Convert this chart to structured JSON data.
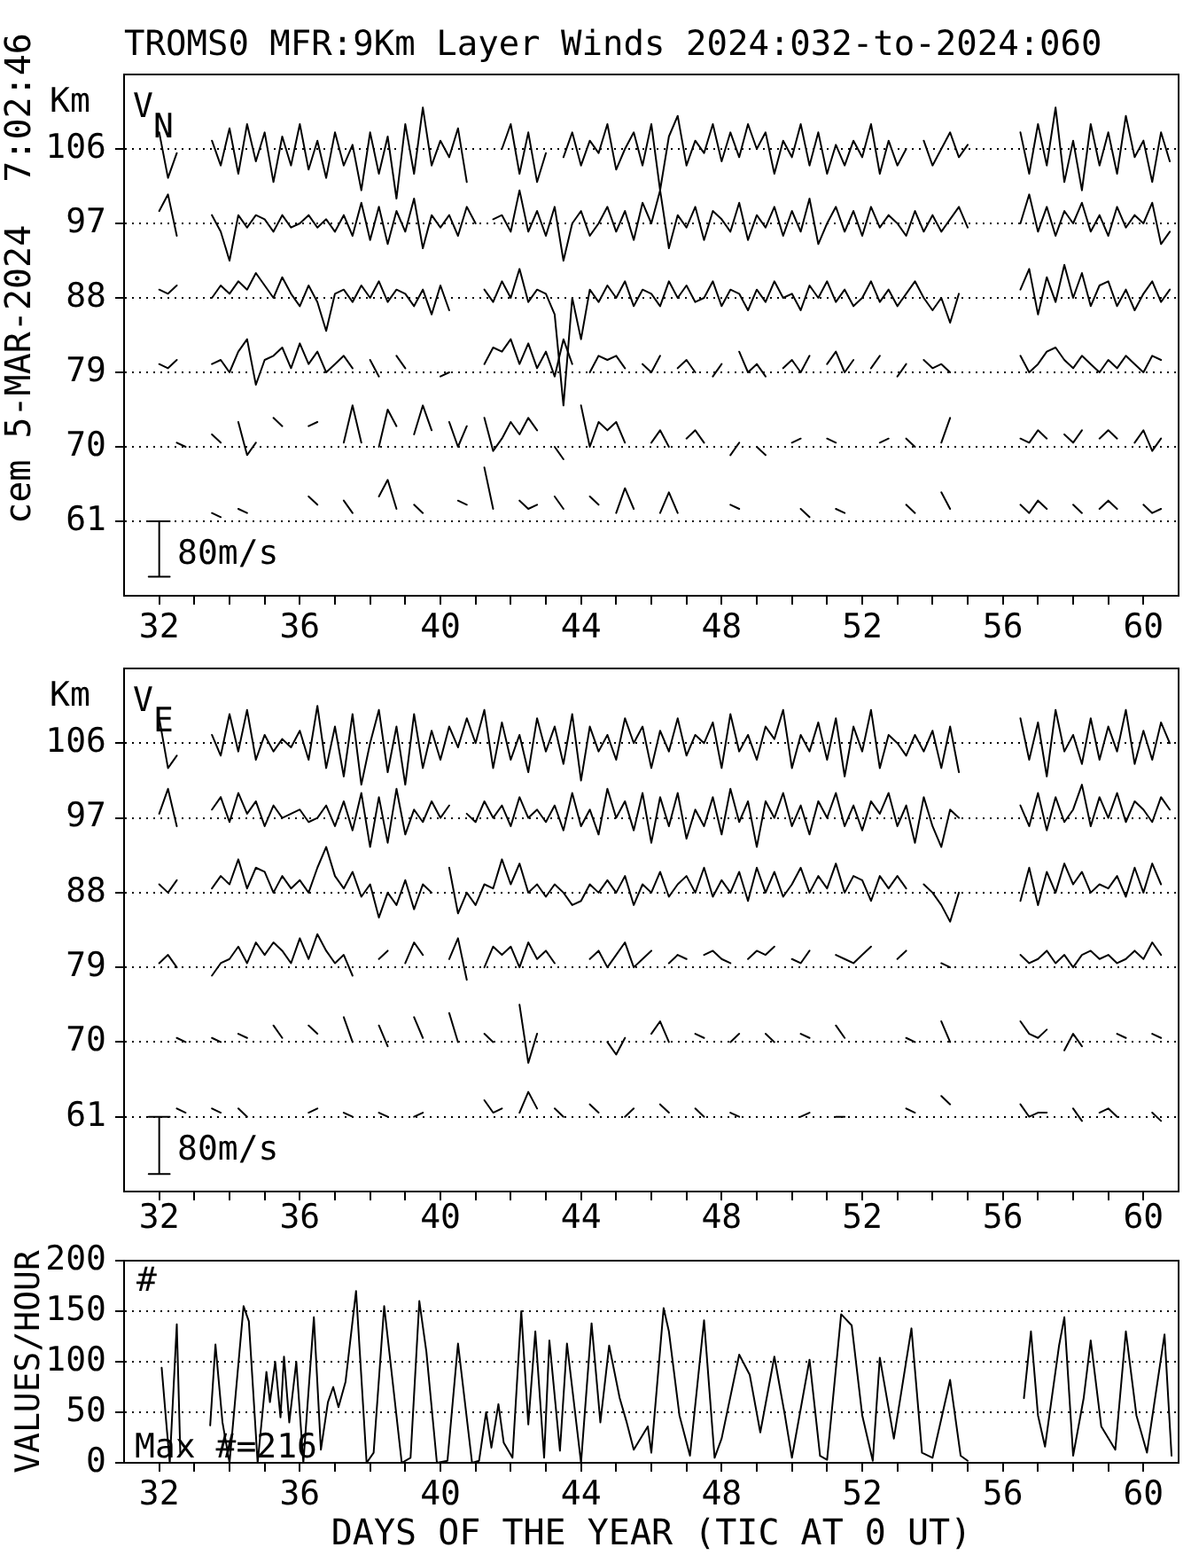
{
  "chart_data": [
    {
      "type": "line",
      "title": "TROMS0 MFR:9Km Layer Winds 2024:032-to-2024:060",
      "ylabel": "Km",
      "annotations": [
        "cem 5-MAR-2024  7:02:46",
        "V$_{N}$",
        "80m/s"
      ],
      "x": [
        32,
        32.25,
        32.5,
        32.75,
        33,
        33.25,
        33.5,
        33.75,
        34,
        34.25,
        34.5,
        34.75,
        35,
        35.25,
        35.5,
        35.75,
        36,
        36.25,
        36.5,
        36.75,
        37,
        37.25,
        37.5,
        37.75,
        38,
        38.25,
        38.5,
        38.75,
        39,
        39.25,
        39.5,
        39.75,
        40,
        40.25,
        40.5,
        40.75,
        41,
        41.25,
        41.5,
        41.75,
        42,
        42.25,
        42.5,
        42.75,
        43,
        43.25,
        43.5,
        43.75,
        44,
        44.25,
        44.5,
        44.75,
        45,
        45.25,
        45.5,
        45.75,
        46,
        46.25,
        46.5,
        46.75,
        47,
        47.25,
        47.5,
        47.75,
        48,
        48.25,
        48.5,
        48.75,
        49,
        49.25,
        49.5,
        49.75,
        50,
        50.25,
        50.5,
        50.75,
        51,
        51.25,
        51.5,
        51.75,
        52,
        52.25,
        52.5,
        52.75,
        53,
        53.25,
        53.5,
        53.75,
        54,
        54.25,
        54.5,
        54.75,
        55,
        55.25,
        55.5,
        55.75,
        56,
        56.25,
        56.5,
        56.75,
        57,
        57.25,
        57.5,
        57.75,
        58,
        58.25,
        58.5,
        58.75,
        59,
        59.25,
        59.5,
        59.75,
        60,
        60.25,
        60.5,
        60.75
      ],
      "series": [
        {
          "color": "#000000",
          "values": [
            108,
            102.5,
            105.5,
            null,
            null,
            null,
            107,
            104,
            108.5,
            103,
            109,
            104.5,
            108,
            102,
            107.5,
            104,
            109,
            103.5,
            107,
            102.5,
            108,
            104,
            106.5,
            101,
            108,
            103,
            107.5,
            100,
            109,
            103,
            111,
            104,
            107,
            105,
            108.5,
            102,
            null,
            null,
            null,
            106,
            109,
            103,
            108,
            102,
            105.5,
            null,
            105,
            108,
            104,
            107,
            105.5,
            109,
            103.5,
            106,
            108,
            104,
            109,
            101,
            107.5,
            110,
            104,
            107,
            105.5,
            109,
            104.5,
            108,
            105,
            109,
            106,
            108,
            103,
            107,
            105,
            109,
            104,
            108,
            103,
            106.5,
            104,
            107,
            105,
            109,
            103,
            107,
            104,
            106,
            null,
            107,
            104,
            106,
            108,
            105,
            106.5,
            null,
            null,
            null,
            null,
            null,
            108,
            103,
            109,
            104,
            111,
            102,
            107,
            101,
            109,
            104,
            108,
            103,
            110,
            105,
            107,
            102,
            108,
            104.5
          ]
        },
        {
          "color": "#000000",
          "values": [
            98.5,
            100.5,
            95.5,
            null,
            null,
            null,
            98,
            96,
            92.5,
            98,
            96.5,
            98,
            97.5,
            96,
            98,
            96.5,
            97,
            98,
            96.5,
            97.5,
            96,
            98,
            95.5,
            99.5,
            95,
            99,
            94.5,
            98.5,
            96,
            100,
            94,
            98,
            96.5,
            98,
            95.5,
            99,
            97,
            null,
            97.5,
            98,
            96,
            101,
            96,
            98.5,
            95.5,
            99,
            92.5,
            97,
            98.5,
            95.5,
            97,
            99,
            96,
            98.5,
            95,
            99.5,
            97,
            101,
            94,
            98,
            96.5,
            99,
            95,
            98.5,
            97.5,
            96,
            99.5,
            95,
            98,
            96.5,
            99,
            95.5,
            98.5,
            96,
            100,
            94.5,
            97,
            99,
            96,
            98.5,
            95.5,
            99,
            96.5,
            98,
            97,
            95.5,
            98.5,
            96,
            98,
            96,
            97.5,
            99,
            96.5,
            null,
            null,
            null,
            null,
            null,
            97,
            100.5,
            96,
            99,
            95.5,
            98.5,
            97,
            99.5,
            96,
            98,
            95.5,
            99,
            96.5,
            98,
            97,
            99.5,
            94.5,
            96
          ]
        },
        {
          "color": "#000000",
          "values": [
            89,
            88.5,
            89.5,
            null,
            null,
            null,
            88,
            89.5,
            88.5,
            90,
            89,
            91,
            89.5,
            88,
            90.5,
            88.5,
            87,
            89.5,
            87.5,
            84,
            88.5,
            89,
            87.5,
            89.5,
            88,
            90,
            87.5,
            89,
            88.5,
            87,
            89,
            86,
            89.5,
            86.5,
            null,
            null,
            null,
            89,
            87.5,
            90,
            88,
            91.5,
            87.5,
            89,
            88.5,
            86,
            75,
            88,
            83,
            89,
            87.5,
            89.5,
            88,
            90,
            87,
            89,
            88.5,
            87,
            90,
            88,
            89.5,
            87.5,
            88,
            90,
            87,
            89,
            88.5,
            86.5,
            89,
            87.5,
            90,
            88,
            88.5,
            86.5,
            89.5,
            88,
            90,
            87.5,
            89,
            87,
            88,
            90,
            87.5,
            89,
            87,
            88.5,
            90,
            88,
            86.5,
            88,
            85,
            88.5,
            null,
            null,
            null,
            null,
            null,
            null,
            89,
            91.5,
            86,
            90.5,
            87.5,
            92,
            88,
            91,
            87,
            89.5,
            90,
            87,
            89,
            86.5,
            88.5,
            90,
            87.5,
            89
          ]
        },
        {
          "color": "#000000",
          "values": [
            80,
            79.5,
            80.5,
            null,
            null,
            null,
            80,
            80.5,
            79,
            81.5,
            83,
            77.5,
            80.5,
            81,
            82,
            79.5,
            82.5,
            80,
            81.5,
            79,
            80,
            81,
            79.5,
            null,
            80.5,
            78.5,
            null,
            81,
            79.5,
            null,
            null,
            null,
            78.5,
            79,
            null,
            null,
            null,
            80,
            82,
            81.5,
            83,
            80,
            82.5,
            79.5,
            81.5,
            78.5,
            83,
            80,
            null,
            79,
            81,
            80.5,
            81,
            79.5,
            null,
            80,
            79,
            81,
            null,
            79.5,
            80.5,
            79,
            null,
            78.5,
            80,
            null,
            81.5,
            79,
            80,
            78.5,
            null,
            79.5,
            80.5,
            79,
            81,
            null,
            80,
            81.5,
            79,
            80.5,
            null,
            79.5,
            81,
            null,
            78.5,
            80,
            null,
            80.5,
            79.5,
            80,
            79,
            null,
            null,
            null,
            null,
            null,
            null,
            null,
            81,
            79,
            80,
            81.5,
            82,
            80.5,
            79.5,
            81,
            80,
            79,
            80.5,
            79.5,
            81,
            80,
            79,
            81,
            80.5,
            null
          ]
        },
        {
          "color": "#000000",
          "values": [
            null,
            null,
            70.5,
            70,
            null,
            null,
            71.5,
            70.5,
            null,
            73,
            69,
            70.5,
            null,
            73.5,
            72.5,
            null,
            null,
            72.5,
            73,
            null,
            null,
            70.5,
            75,
            70.5,
            null,
            70,
            74.5,
            72.5,
            null,
            71.5,
            75,
            72,
            null,
            73,
            70,
            72.5,
            null,
            73.5,
            69.5,
            71,
            73,
            71.5,
            73.5,
            72,
            null,
            70,
            68.5,
            null,
            75,
            70,
            73,
            72,
            73,
            70.5,
            null,
            null,
            70.5,
            72,
            70,
            null,
            71,
            72,
            70.5,
            null,
            null,
            69,
            70.5,
            null,
            70,
            69,
            null,
            null,
            70.5,
            71,
            null,
            null,
            71,
            70.5,
            null,
            null,
            null,
            null,
            70.5,
            71,
            null,
            71,
            70,
            null,
            null,
            70.5,
            73.5,
            null,
            null,
            null,
            null,
            null,
            null,
            null,
            71,
            70.5,
            72,
            71,
            null,
            71.5,
            70.5,
            72,
            null,
            71,
            72,
            71,
            null,
            70.5,
            72,
            69.5,
            71,
            null
          ]
        },
        {
          "color": "#000000",
          "values": [
            null,
            null,
            null,
            null,
            null,
            null,
            62,
            61.5,
            null,
            62.5,
            62,
            null,
            null,
            null,
            null,
            null,
            null,
            64,
            63,
            null,
            null,
            63.5,
            62,
            null,
            null,
            64,
            66,
            62.5,
            null,
            63,
            62,
            null,
            null,
            null,
            63.5,
            63,
            null,
            67.5,
            62.5,
            null,
            null,
            63.5,
            62.5,
            63,
            null,
            64,
            62.5,
            null,
            null,
            64,
            63,
            null,
            62,
            65,
            62.5,
            null,
            null,
            62,
            64.5,
            62,
            null,
            null,
            null,
            null,
            null,
            63,
            62.5,
            null,
            null,
            null,
            null,
            null,
            null,
            62.5,
            61.5,
            null,
            null,
            62.5,
            62,
            null,
            null,
            null,
            null,
            null,
            null,
            63,
            62,
            null,
            null,
            64.5,
            62.5,
            null,
            null,
            null,
            null,
            null,
            null,
            null,
            63,
            62,
            63.5,
            62.5,
            null,
            null,
            63,
            62,
            null,
            62.5,
            63.5,
            62.5,
            null,
            null,
            63,
            62,
            62.5,
            null
          ]
        },
        {
          "color": "#000000",
          "x": [
            31.7,
            32.3,
            32,
            32,
            31.7,
            32.3
          ],
          "values": [
            61,
            61,
            61,
            54.3,
            54.3,
            54.3
          ]
        }
      ],
      "xlim": [
        31,
        61
      ],
      "xticks": [
        32,
        {
          "value": 33,
          "label": null
        },
        {
          "value": 34,
          "label": null
        },
        {
          "value": 35,
          "label": null
        },
        36,
        {
          "value": 37,
          "label": null
        },
        {
          "value": 38,
          "label": null
        },
        {
          "value": 39,
          "label": null
        },
        40,
        {
          "value": 41,
          "label": null
        },
        {
          "value": 42,
          "label": null
        },
        {
          "value": 43,
          "label": null
        },
        44,
        {
          "value": 45,
          "label": null
        },
        {
          "value": 46,
          "label": null
        },
        {
          "value": 47,
          "label": null
        },
        48,
        {
          "value": 49,
          "label": null
        },
        {
          "value": 50,
          "label": null
        },
        {
          "value": 51,
          "label": null
        },
        52,
        {
          "value": 53,
          "label": null
        },
        {
          "value": 54,
          "label": null
        },
        {
          "value": 55,
          "label": null
        },
        56,
        {
          "value": 57,
          "label": null
        },
        {
          "value": 58,
          "label": null
        },
        {
          "value": 59,
          "label": null
        },
        60
      ],
      "ylim": [
        52,
        115
      ],
      "yticks": [
        61,
        70,
        79,
        88,
        97,
        106
      ],
      "grid": "y"
    },
    {
      "type": "line",
      "ylabel": "Km",
      "annotations": [
        "V$_{E}$",
        "80m/s"
      ],
      "x": [
        32,
        32.25,
        32.5,
        32.75,
        33,
        33.25,
        33.5,
        33.75,
        34,
        34.25,
        34.5,
        34.75,
        35,
        35.25,
        35.5,
        35.75,
        36,
        36.25,
        36.5,
        36.75,
        37,
        37.25,
        37.5,
        37.75,
        38,
        38.25,
        38.5,
        38.75,
        39,
        39.25,
        39.5,
        39.75,
        40,
        40.25,
        40.5,
        40.75,
        41,
        41.25,
        41.5,
        41.75,
        42,
        42.25,
        42.5,
        42.75,
        43,
        43.25,
        43.5,
        43.75,
        44,
        44.25,
        44.5,
        44.75,
        45,
        45.25,
        45.5,
        45.75,
        46,
        46.25,
        46.5,
        46.75,
        47,
        47.25,
        47.5,
        47.75,
        48,
        48.25,
        48.5,
        48.75,
        49,
        49.25,
        49.5,
        49.75,
        50,
        50.25,
        50.5,
        50.75,
        51,
        51.25,
        51.5,
        51.75,
        52,
        52.25,
        52.5,
        52.75,
        53,
        53.25,
        53.5,
        53.75,
        54,
        54.25,
        54.5,
        54.75,
        55,
        55.25,
        55.5,
        55.75,
        56,
        56.25,
        56.5,
        56.75,
        57,
        57.25,
        57.5,
        57.75,
        58,
        58.25,
        58.5,
        58.75,
        59,
        59.25,
        59.5,
        59.75,
        60,
        60.25,
        60.5,
        60.75
      ],
      "series": [
        {
          "color": "#000000",
          "values": [
            109,
            103,
            104.5,
            null,
            null,
            null,
            107,
            104.5,
            109.5,
            105,
            110,
            104,
            107,
            105,
            106.5,
            105.5,
            107.5,
            104,
            110.5,
            103,
            108,
            102,
            109.5,
            101,
            106,
            110,
            102.5,
            108,
            101,
            109.5,
            103,
            107.5,
            104,
            108,
            105.5,
            109,
            106,
            110,
            103,
            108.5,
            104,
            107,
            102.5,
            109,
            105,
            108,
            103.5,
            109.5,
            101.5,
            108,
            105,
            107,
            104,
            109,
            106,
            108,
            103,
            107.5,
            105,
            109,
            104.5,
            107,
            106,
            108.5,
            103,
            109.5,
            105,
            107,
            104,
            108,
            106.5,
            110,
            103,
            107,
            105,
            108.5,
            104,
            109,
            102,
            108,
            105,
            110,
            103,
            107,
            106,
            104.5,
            107,
            105,
            107.5,
            103,
            108,
            102.5,
            null,
            null,
            null,
            null,
            null,
            null,
            109,
            104,
            108.5,
            102,
            110,
            105,
            107,
            103.5,
            109,
            104,
            108,
            105,
            110,
            103.5,
            107.5,
            104,
            108.5,
            106
          ]
        },
        {
          "color": "#000000",
          "values": [
            97.5,
            100.5,
            96,
            null,
            null,
            null,
            98,
            99.5,
            96.5,
            100,
            97.5,
            99,
            96,
            98.5,
            97,
            97.5,
            98,
            96.5,
            97,
            98.5,
            96,
            99,
            95.5,
            100,
            93.5,
            99.5,
            94,
            100.5,
            95,
            98,
            96.5,
            99,
            97,
            98.5,
            null,
            97.5,
            96.5,
            99,
            97,
            98.5,
            96,
            99.5,
            97,
            98,
            96.5,
            98.5,
            95.5,
            100,
            96,
            98,
            95,
            100.5,
            97,
            99,
            95.5,
            100,
            94,
            99.5,
            96,
            100,
            94.5,
            98,
            96,
            99.5,
            95,
            100.5,
            96.5,
            99,
            93.5,
            99,
            97,
            100,
            96,
            98.5,
            95,
            99,
            97,
            100,
            96,
            98.5,
            95.5,
            99,
            97.5,
            100,
            96,
            98.5,
            94,
            99.5,
            96,
            93.5,
            98,
            97,
            null,
            null,
            null,
            null,
            null,
            null,
            98.5,
            96,
            100,
            95.5,
            99.5,
            96.5,
            98,
            101,
            96,
            99.5,
            97,
            100,
            96.5,
            99,
            98,
            96.5,
            99.5,
            98
          ]
        },
        {
          "color": "#000000",
          "values": [
            89,
            88,
            89.5,
            null,
            null,
            null,
            88.5,
            90,
            89,
            92,
            88.5,
            91,
            90.5,
            88,
            90,
            88.5,
            89.5,
            88,
            91,
            93.5,
            90,
            88.5,
            90.5,
            87.5,
            89,
            85,
            88,
            86.5,
            89.5,
            86,
            89,
            88,
            null,
            91,
            85.5,
            88,
            86.5,
            89,
            88.5,
            92,
            89,
            91.5,
            88,
            89,
            87.5,
            89,
            88,
            86.5,
            87,
            89,
            88,
            89.5,
            88,
            90,
            86.5,
            89,
            88,
            90.5,
            87.5,
            89,
            90,
            88,
            91,
            87.5,
            89.5,
            88,
            90.5,
            87,
            91,
            88,
            90.5,
            87.5,
            89,
            91,
            88,
            90,
            88.5,
            91.5,
            88,
            90,
            89.5,
            87,
            90,
            88.5,
            90,
            88.5,
            null,
            89,
            88,
            86.5,
            84.5,
            88,
            null,
            null,
            null,
            null,
            null,
            null,
            87,
            91,
            86.5,
            90.5,
            88,
            91.5,
            89,
            90.5,
            88,
            89,
            88.5,
            90,
            87.5,
            91,
            88,
            91.5,
            89,
            null
          ]
        },
        {
          "color": "#000000",
          "values": [
            79.5,
            80.5,
            79,
            null,
            null,
            null,
            78,
            79.5,
            80,
            81.5,
            79.5,
            82,
            80.5,
            82,
            81,
            79.5,
            82.5,
            80,
            83,
            81,
            79.5,
            80.5,
            78,
            null,
            null,
            80,
            81,
            null,
            79.5,
            82,
            80.5,
            null,
            null,
            80,
            82.5,
            77.5,
            null,
            79,
            81.5,
            80.5,
            81.5,
            79,
            82,
            80,
            81,
            79.5,
            null,
            null,
            null,
            80,
            81,
            79,
            80.5,
            82,
            79,
            80,
            81,
            null,
            79.5,
            80.5,
            80,
            null,
            80.5,
            81,
            80,
            79.5,
            null,
            80,
            81,
            80.5,
            81.5,
            null,
            80,
            79.5,
            81,
            null,
            null,
            80.5,
            80,
            79.5,
            80.5,
            81.5,
            null,
            null,
            80,
            81,
            null,
            null,
            null,
            79.5,
            79,
            null,
            null,
            null,
            null,
            null,
            null,
            null,
            80.5,
            79.5,
            80,
            81,
            79.5,
            80.5,
            79,
            80.5,
            81,
            80,
            80.5,
            79.5,
            80,
            81,
            80,
            82,
            80.5,
            null
          ]
        },
        {
          "color": "#000000",
          "values": [
            null,
            null,
            70.5,
            70,
            null,
            null,
            70.5,
            70,
            null,
            71,
            70.5,
            null,
            null,
            72,
            70.5,
            null,
            null,
            72,
            71,
            null,
            null,
            73,
            70,
            null,
            null,
            72,
            69.5,
            null,
            null,
            73,
            70.5,
            null,
            null,
            73.5,
            70,
            null,
            null,
            71,
            70,
            null,
            null,
            74.5,
            67.5,
            71,
            null,
            null,
            null,
            null,
            null,
            null,
            null,
            70,
            68.5,
            70.5,
            null,
            null,
            71,
            72.5,
            70,
            null,
            null,
            71,
            70.5,
            null,
            null,
            70,
            71,
            null,
            null,
            71,
            70,
            null,
            null,
            71,
            70.5,
            null,
            null,
            72,
            70.5,
            null,
            null,
            null,
            null,
            null,
            null,
            70.5,
            70,
            null,
            null,
            72.5,
            70,
            null,
            null,
            null,
            null,
            null,
            null,
            null,
            72.5,
            71,
            70.5,
            71.5,
            null,
            69,
            71,
            69.5,
            null,
            null,
            null,
            71,
            70.5,
            null,
            null,
            71,
            70.5,
            null
          ]
        },
        {
          "color": "#000000",
          "values": [
            null,
            null,
            62,
            61.5,
            null,
            null,
            62,
            61.5,
            null,
            62,
            61,
            null,
            null,
            null,
            null,
            null,
            null,
            61.5,
            62,
            null,
            null,
            61.5,
            61,
            null,
            null,
            61.5,
            61,
            null,
            null,
            61,
            61.5,
            null,
            null,
            null,
            null,
            null,
            null,
            63,
            61.5,
            62,
            null,
            61.5,
            64,
            62,
            null,
            62,
            61,
            null,
            null,
            62.5,
            61.5,
            null,
            null,
            61,
            62,
            null,
            null,
            62.5,
            61.5,
            null,
            null,
            62,
            61,
            null,
            null,
            61.5,
            61,
            null,
            null,
            null,
            null,
            null,
            null,
            61,
            61.5,
            null,
            null,
            61,
            61,
            null,
            null,
            null,
            null,
            null,
            null,
            62,
            61.5,
            null,
            null,
            63.5,
            62.5,
            null,
            null,
            null,
            null,
            null,
            null,
            null,
            62.5,
            61,
            61.5,
            61.5,
            null,
            null,
            62,
            60.5,
            null,
            61.5,
            62,
            61,
            null,
            null,
            null,
            61.5,
            60.5,
            null
          ]
        },
        {
          "color": "#000000",
          "x": [
            31.7,
            32.3,
            32,
            32,
            31.7,
            32.3
          ],
          "values": [
            61,
            61,
            61,
            54.1,
            54.1,
            54.1
          ]
        }
      ],
      "xlim": [
        31,
        61
      ],
      "xticks": [
        32,
        {
          "value": 33,
          "label": null
        },
        {
          "value": 34,
          "label": null
        },
        {
          "value": 35,
          "label": null
        },
        36,
        {
          "value": 37,
          "label": null
        },
        {
          "value": 38,
          "label": null
        },
        {
          "value": 39,
          "label": null
        },
        40,
        {
          "value": 41,
          "label": null
        },
        {
          "value": 42,
          "label": null
        },
        {
          "value": 43,
          "label": null
        },
        44,
        {
          "value": 45,
          "label": null
        },
        {
          "value": 46,
          "label": null
        },
        {
          "value": 47,
          "label": null
        },
        48,
        {
          "value": 49,
          "label": null
        },
        {
          "value": 50,
          "label": null
        },
        {
          "value": 51,
          "label": null
        },
        52,
        {
          "value": 53,
          "label": null
        },
        {
          "value": 54,
          "label": null
        },
        {
          "value": 55,
          "label": null
        },
        56,
        {
          "value": 57,
          "label": null
        },
        {
          "value": 58,
          "label": null
        },
        {
          "value": 59,
          "label": null
        },
        60
      ],
      "ylim": [
        52,
        115
      ],
      "yticks": [
        61,
        70,
        79,
        88,
        97,
        106
      ],
      "grid": "y"
    },
    {
      "type": "line",
      "xlabel": "DAYS OF THE YEAR (TIC AT 0 UT)",
      "ylabel": "VALUES/HOUR",
      "annotations": [
        "#",
        "Max #=216"
      ],
      "x": [
        32.07,
        32.2,
        32.3,
        32.5,
        32.6,
        33.0,
        33.45,
        33.6,
        33.8,
        34.0,
        34.4,
        34.55,
        34.8,
        35.05,
        35.15,
        35.3,
        35.45,
        35.55,
        35.7,
        35.9,
        36.1,
        36.4,
        36.6,
        36.8,
        36.95,
        37.1,
        37.3,
        37.6,
        37.9,
        38.1,
        38.4,
        38.9,
        39.15,
        39.4,
        39.6,
        39.9,
        40.2,
        40.5,
        40.9,
        41.1,
        41.3,
        41.45,
        41.65,
        41.8,
        42.05,
        42.3,
        42.5,
        42.7,
        42.95,
        43.1,
        43.4,
        43.6,
        44.0,
        44.3,
        44.55,
        44.8,
        45.1,
        45.3,
        45.5,
        45.9,
        46.0,
        46.35,
        46.5,
        46.8,
        47.1,
        47.5,
        47.8,
        48.0,
        48.5,
        48.8,
        49.1,
        49.5,
        49.8,
        50.0,
        50.5,
        50.8,
        51.0,
        51.4,
        51.7,
        52.0,
        52.3,
        52.5,
        52.9,
        53.4,
        53.7,
        54.0,
        54.5,
        54.8,
        55.0,
        55.7,
        56.6,
        56.8,
        57.0,
        57.2,
        57.6,
        57.75,
        58.0,
        58.3,
        58.5,
        58.8,
        59.2,
        59.5,
        59.8,
        60.1,
        60.6,
        60.8
      ],
      "values": [
        94,
        40,
        0,
        137,
        10,
        null,
        37,
        117,
        40,
        0,
        155,
        140,
        0,
        90,
        60,
        100,
        45,
        105,
        40,
        100,
        0,
        144,
        13,
        60,
        75,
        55,
        80,
        170,
        0,
        10,
        155,
        0,
        5,
        160,
        110,
        0,
        2,
        118,
        0,
        2,
        50,
        15,
        58,
        20,
        5,
        150,
        38,
        130,
        5,
        121,
        12,
        118,
        0,
        138,
        40,
        116,
        64,
        40,
        13,
        36,
        10,
        153,
        130,
        47,
        7,
        141,
        5,
        24,
        107,
        87,
        30,
        105,
        47,
        5,
        102,
        7,
        3,
        147,
        136,
        47,
        2,
        104,
        24,
        133,
        10,
        5,
        82,
        7,
        2,
        null,
        64,
        130,
        47,
        16,
        116,
        144,
        7,
        64,
        121,
        36,
        13,
        130,
        47,
        10,
        127,
        7
      ],
      "color": "#000000",
      "xlim": [
        31,
        61
      ],
      "xticks": [
        32,
        {
          "value": 33,
          "label": null
        },
        {
          "value": 34,
          "label": null
        },
        {
          "value": 35,
          "label": null
        },
        36,
        {
          "value": 37,
          "label": null
        },
        {
          "value": 38,
          "label": null
        },
        {
          "value": 39,
          "label": null
        },
        40,
        {
          "value": 41,
          "label": null
        },
        {
          "value": 42,
          "label": null
        },
        {
          "value": 43,
          "label": null
        },
        44,
        {
          "value": 45,
          "label": null
        },
        {
          "value": 46,
          "label": null
        },
        {
          "value": 47,
          "label": null
        },
        48,
        {
          "value": 49,
          "label": null
        },
        {
          "value": 50,
          "label": null
        },
        {
          "value": 51,
          "label": null
        },
        52,
        {
          "value": 53,
          "label": null
        },
        {
          "value": 54,
          "label": null
        },
        {
          "value": 55,
          "label": null
        },
        56,
        {
          "value": 57,
          "label": null
        },
        {
          "value": 58,
          "label": null
        },
        {
          "value": 59,
          "label": null
        },
        60
      ],
      "ylim": [
        0,
        200
      ],
      "yticks": [
        0,
        50,
        100,
        150,
        200
      ],
      "grid": "y"
    }
  ]
}
